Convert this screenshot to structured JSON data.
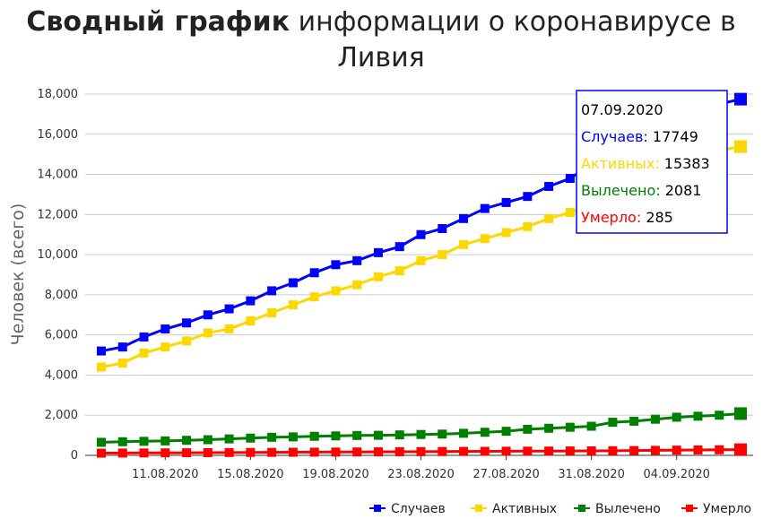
{
  "chart_data": {
    "type": "line",
    "title_bold": "Сводный график",
    "title_rest": " информации о коронавирусе в",
    "title_line2": "Ливия",
    "ylabel": "Человек (всего)",
    "xlabel": "",
    "ylim": [
      0,
      18000
    ],
    "yticks": [
      "0",
      "2,000",
      "4,000",
      "6,000",
      "8,000",
      "10,000",
      "12,000",
      "14,000",
      "16,000",
      "18,000"
    ],
    "grid": true,
    "legend_position": "bottom-right",
    "x": [
      "08.08.2020",
      "09.08.2020",
      "10.08.2020",
      "11.08.2020",
      "12.08.2020",
      "13.08.2020",
      "14.08.2020",
      "15.08.2020",
      "16.08.2020",
      "17.08.2020",
      "18.08.2020",
      "19.08.2020",
      "20.08.2020",
      "21.08.2020",
      "22.08.2020",
      "23.08.2020",
      "24.08.2020",
      "25.08.2020",
      "26.08.2020",
      "27.08.2020",
      "28.08.2020",
      "29.08.2020",
      "30.08.2020",
      "31.08.2020",
      "01.09.2020",
      "02.09.2020",
      "03.09.2020",
      "04.09.2020",
      "05.09.2020",
      "06.09.2020",
      "07.09.2020"
    ],
    "xtick_labels": [
      "11.08.2020",
      "15.08.2020",
      "19.08.2020",
      "23.08.2020",
      "27.08.2020",
      "31.08.2020",
      "04.09.2020"
    ],
    "series": [
      {
        "name": "Случаев",
        "color": "#0000ff",
        "values": [
          5200,
          5400,
          5900,
          6300,
          6600,
          7000,
          7300,
          7700,
          8200,
          8600,
          9100,
          9500,
          9700,
          10100,
          10400,
          11000,
          11300,
          11800,
          12300,
          12600,
          12900,
          13400,
          13800,
          14500,
          15200,
          15700,
          16400,
          17000,
          17300,
          17500,
          17749
        ]
      },
      {
        "name": "Активных",
        "color": "#ffd700",
        "values": [
          4400,
          4600,
          5100,
          5400,
          5700,
          6100,
          6300,
          6700,
          7100,
          7500,
          7900,
          8200,
          8500,
          8900,
          9200,
          9700,
          10000,
          10500,
          10800,
          11100,
          11400,
          11800,
          12100,
          12500,
          13000,
          13500,
          14000,
          14500,
          14900,
          15200,
          15383
        ]
      },
      {
        "name": "Вылечено",
        "color": "#008000",
        "values": [
          650,
          680,
          700,
          720,
          750,
          780,
          820,
          860,
          900,
          920,
          950,
          970,
          990,
          1000,
          1020,
          1040,
          1060,
          1100,
          1150,
          1200,
          1300,
          1350,
          1400,
          1450,
          1650,
          1700,
          1800,
          1900,
          1950,
          2000,
          2081
        ]
      },
      {
        "name": "Умерло",
        "color": "#ff0000",
        "values": [
          110,
          115,
          120,
          125,
          130,
          135,
          140,
          145,
          150,
          155,
          160,
          165,
          170,
          175,
          180,
          185,
          190,
          195,
          200,
          205,
          210,
          215,
          220,
          225,
          230,
          240,
          250,
          260,
          270,
          278,
          285
        ]
      }
    ],
    "tooltip": {
      "date": "07.09.2020",
      "rows": [
        {
          "label": "Случаев:",
          "value": "17749",
          "color": "#0000ff"
        },
        {
          "label": "Активных:",
          "value": "15383",
          "color": "#ffd700"
        },
        {
          "label": "Вылечено:",
          "value": "2081",
          "color": "#008000"
        },
        {
          "label": "Умерло:",
          "value": "285",
          "color": "#ff0000"
        }
      ]
    }
  }
}
